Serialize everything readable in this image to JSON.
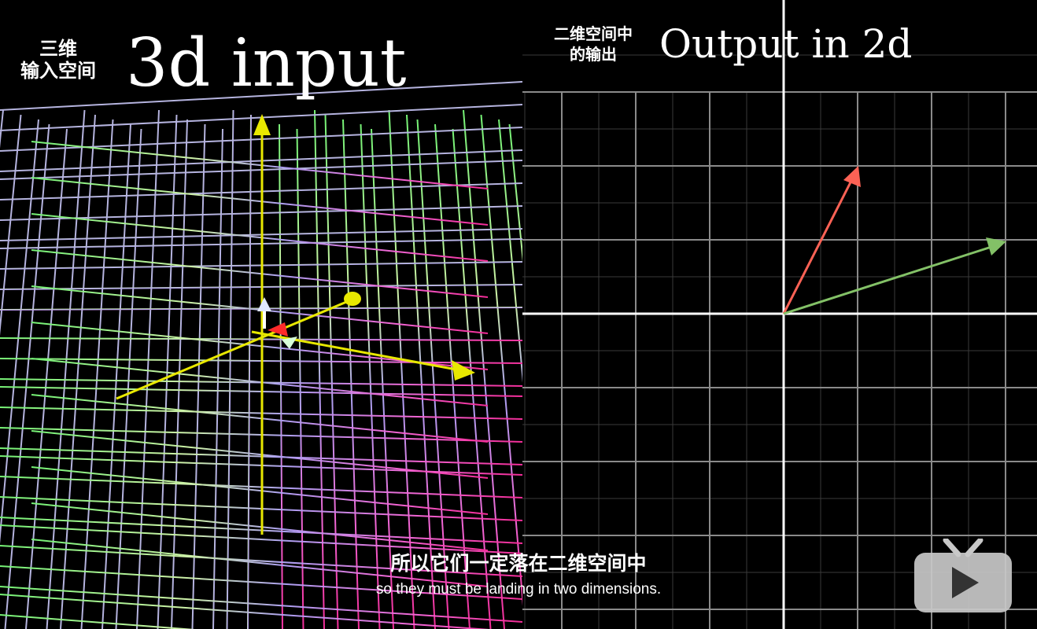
{
  "left_panel": {
    "title_cn": "三维\n输入空间",
    "title_en": "3d input"
  },
  "right_panel": {
    "title_cn": "二维空间中\n的输出",
    "title_en": "Output in 2d"
  },
  "subtitles": {
    "chinese": "所以它们一定落在二维空间中",
    "english": "so they must be landing in two dimensions."
  },
  "colors": {
    "background": "#000000",
    "grid": "#8a8a8a",
    "axis": "#ffffff",
    "vector_red": "#fc6255",
    "vector_green": "#83c167",
    "axis_yellow": "#e8e800"
  },
  "icons": {
    "player_logo": "tv-play-icon"
  }
}
